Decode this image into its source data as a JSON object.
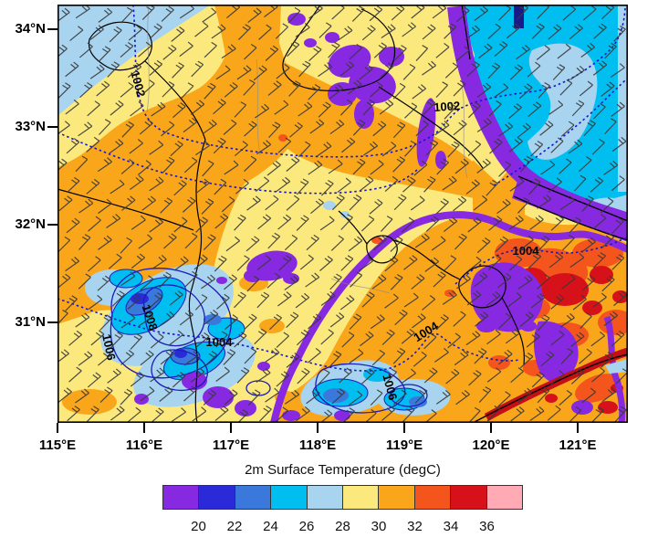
{
  "map": {
    "x_axis": {
      "tick_labels": [
        "115°E",
        "116°E",
        "117°E",
        "118°E",
        "119°E",
        "120°E",
        "121°E"
      ]
    },
    "y_axis": {
      "tick_labels": [
        "34°N",
        "33°N",
        "32°N",
        "31°N"
      ]
    },
    "contours": {
      "labels": [
        {
          "text": "1002"
        },
        {
          "text": "1002"
        },
        {
          "text": "1004"
        },
        {
          "text": "1004"
        },
        {
          "text": "1004"
        },
        {
          "text": "1006"
        },
        {
          "text": "1008"
        },
        {
          "text": "1006"
        }
      ]
    }
  },
  "colorbar": {
    "title": "2m Surface Temperature  (degC)",
    "tick_labels": [
      "20",
      "22",
      "24",
      "26",
      "28",
      "30",
      "32",
      "34",
      "36"
    ],
    "colors": [
      "#8629E0",
      "#2A2AD9",
      "#3A78DC",
      "#00BFF0",
      "#A8D4F0",
      "#FBE97E",
      "#FAA61B",
      "#F4551D",
      "#D6111A",
      "#FFAAB4"
    ]
  },
  "palette": {
    "purple": "#8629E0",
    "blue": "#2A2AD9",
    "royal": "#3A78DC",
    "cyan": "#00BFF0",
    "lightblue": "#A8D4F0",
    "yellow": "#FBE97E",
    "orange": "#FAA61B",
    "orangered": "#F4551D",
    "red": "#D6111A",
    "pink": "#FFAAB4",
    "navy": "#1A1A8C",
    "darkred": "#C40F16",
    "contour": "#1616D0",
    "contour_solid": "#1C1CB8",
    "border": "#000000",
    "county": "#8a8a8a",
    "barb": "#3A3A3A"
  },
  "chart_data": {
    "type": "heatmap",
    "title": "2m Surface Temperature  (degC)",
    "x_ticks": [
      "115°E",
      "116°E",
      "117°E",
      "118°E",
      "119°E",
      "120°E",
      "121°E"
    ],
    "y_ticks": [
      "34°N",
      "33°N",
      "32°N",
      "31°N"
    ],
    "colorbar_ticks": [
      20,
      22,
      24,
      26,
      28,
      30,
      32,
      34,
      36
    ],
    "colorbar_colors": [
      "#8629E0",
      "#2A2AD9",
      "#3A78DC",
      "#00BFF0",
      "#A8D4F0",
      "#FBE97E",
      "#FAA61B",
      "#F4551D",
      "#D6111A",
      "#FFAAB4"
    ],
    "isobar_labels": [
      1002,
      1002,
      1004,
      1004,
      1004,
      1006,
      1008,
      1006
    ],
    "overlays": [
      "wind-barbs",
      "sea-level-pressure-isobars",
      "province-borders"
    ]
  }
}
